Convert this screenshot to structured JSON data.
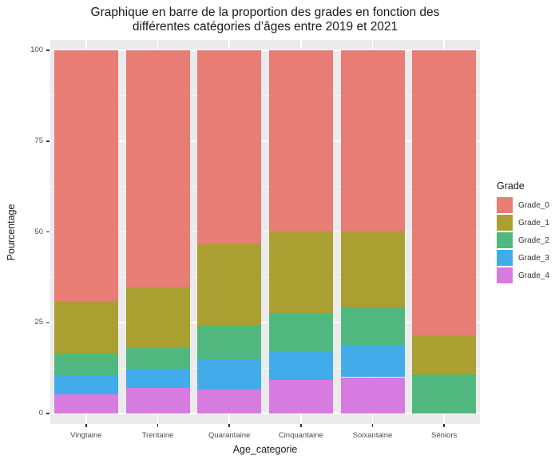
{
  "figure": {
    "title_line1": "Graphique en barre de la proportion des grades en fonction des",
    "title_line2": "différentes catégories d’âges entre 2019 et 2021"
  },
  "chart_data": {
    "type": "bar",
    "stacked": true,
    "orientation": "vertical",
    "title": "Graphique en barre de la proportion des grades en fonction des différentes catégories d’âges entre 2019 et 2021",
    "xlabel": "Age_categorie",
    "ylabel": "Pourcentage",
    "categories": [
      "Vingtaine",
      "Trentaine",
      "Quarantaine",
      "Cinquantaine",
      "Soixantaine",
      "Séniors"
    ],
    "series": [
      {
        "name": "Grade_0",
        "color": "#E77D75",
        "values": [
          69.0,
          65.3,
          53.4,
          49.8,
          49.9,
          78.5
        ]
      },
      {
        "name": "Grade_1",
        "color": "#AAA032",
        "values": [
          14.5,
          16.7,
          22.3,
          22.8,
          20.8,
          10.8
        ]
      },
      {
        "name": "Grade_2",
        "color": "#50B87F",
        "values": [
          6.0,
          5.7,
          9.4,
          10.5,
          10.4,
          10.7
        ]
      },
      {
        "name": "Grade_3",
        "color": "#41ACE9",
        "values": [
          5.2,
          5.3,
          8.3,
          7.7,
          8.9,
          0
        ]
      },
      {
        "name": "Grade_4",
        "color": "#D77BE0",
        "values": [
          5.3,
          7.0,
          6.6,
          9.2,
          10.0,
          0
        ]
      }
    ],
    "stack_note": "first series (Grade_0) is the top segment of each bar",
    "y_ticks": [
      0,
      25,
      50,
      75,
      100
    ],
    "ylim": [
      0,
      100
    ],
    "legend_title": "Grade",
    "legend_position": "right",
    "grid": true,
    "panel_bg": "#EBEBEB",
    "grid_color": "#FFFFFF",
    "axis_text_color": "#4d4d4d",
    "tick_color": "#333333"
  }
}
